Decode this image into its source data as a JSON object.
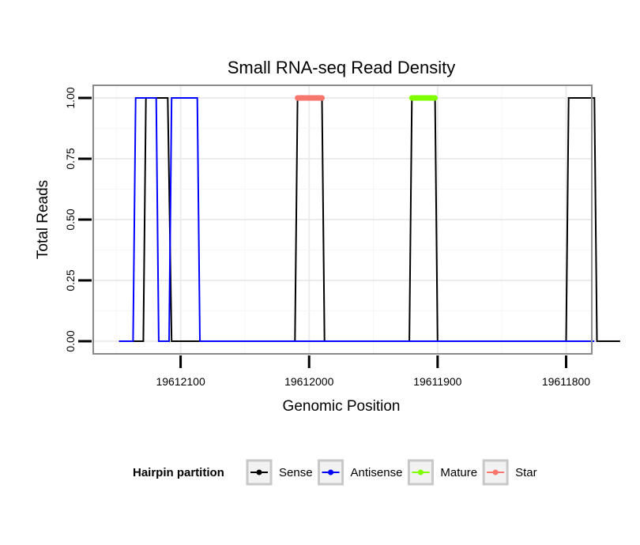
{
  "chart_data": {
    "type": "line",
    "title": "Small RNA-seq Read Density",
    "xlabel": "Genomic Position",
    "ylabel": "Total Reads",
    "x_reversed": true,
    "xlim": [
      19612168,
      19611780
    ],
    "ylim": [
      0,
      1.05
    ],
    "x_ticks": [
      19612100,
      19612000,
      19611900,
      19611800
    ],
    "x_tick_labels": [
      "19612100",
      "19612000",
      "19611900",
      "19611800"
    ],
    "y_ticks": [
      0,
      0.25,
      0.5,
      0.75,
      1
    ],
    "y_tick_labels": [
      "0.00",
      "0.25",
      "0.50",
      "0.75",
      "1.00"
    ],
    "grid": true,
    "legend": {
      "title": "Hairpin partition",
      "placement": "bottom",
      "entries": [
        "Sense",
        "Antisense",
        "Mature",
        "Star"
      ]
    },
    "series": [
      {
        "name": "Sense",
        "color": "#000000",
        "width": 2,
        "x": [
          19612148,
          19612129,
          19612127,
          19612110,
          19612107,
          19612011,
          19612009,
          19611990,
          19611988,
          19611922,
          19611920,
          19611902,
          19611900,
          19611800,
          19611798,
          19611778,
          19611776,
          19611758
        ],
        "y": [
          0,
          0,
          1,
          1,
          0,
          0,
          1,
          1,
          0,
          0,
          1,
          1,
          0,
          0,
          1,
          1,
          0,
          0
        ]
      },
      {
        "name": "Antisense",
        "color": "#0000ff",
        "width": 2,
        "x": [
          19612148,
          19612137,
          19612135,
          19612119,
          19612117,
          19612109,
          19612107,
          19612087,
          19612085,
          19612011,
          19611988,
          19611922,
          19611900,
          19611800,
          19611778
        ],
        "y": [
          0,
          0,
          1,
          1,
          0,
          0,
          1,
          1,
          0,
          0,
          0,
          0,
          0,
          0,
          0
        ]
      },
      {
        "name": "Mature",
        "color": "#7fff00",
        "width": 7,
        "x": [
          19611920,
          19611902
        ],
        "y": [
          1,
          1
        ]
      },
      {
        "name": "Star",
        "color": "#f8766d",
        "width": 7,
        "x": [
          19612009,
          19611990
        ],
        "y": [
          1,
          1
        ]
      }
    ]
  }
}
